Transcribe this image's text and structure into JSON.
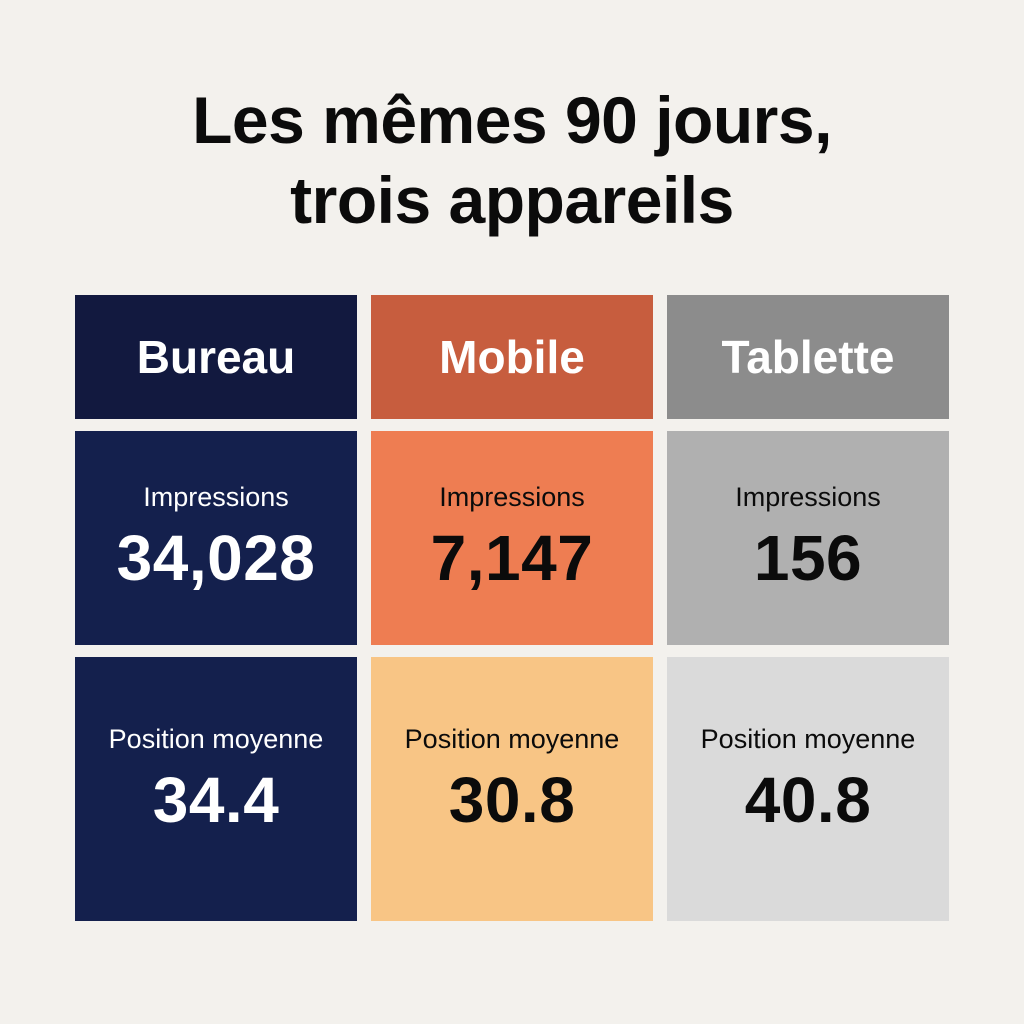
{
  "title": {
    "line1": "Les mêmes 90 jours,",
    "line2": "trois appareils"
  },
  "colors": {
    "background": "#f3f1ed",
    "bureau": "#14204d",
    "mobile_header": "#c75d3e",
    "mobile_impressions": "#ee7d52",
    "mobile_position": "#f8c585",
    "tablette_header": "#8c8c8c",
    "tablette_impressions": "#b0b0b0",
    "tablette_position": "#dadada"
  },
  "devices": [
    {
      "name": "Bureau",
      "impressions_label": "Impressions",
      "impressions": "34,028",
      "position_label": "Position moyenne",
      "position": "34.4"
    },
    {
      "name": "Mobile",
      "impressions_label": "Impressions",
      "impressions": "7,147",
      "position_label": "Position moyenne",
      "position": "30.8"
    },
    {
      "name": "Tablette",
      "impressions_label": "Impressions",
      "impressions": "156",
      "position_label": "Position moyenne",
      "position": "40.8"
    }
  ]
}
